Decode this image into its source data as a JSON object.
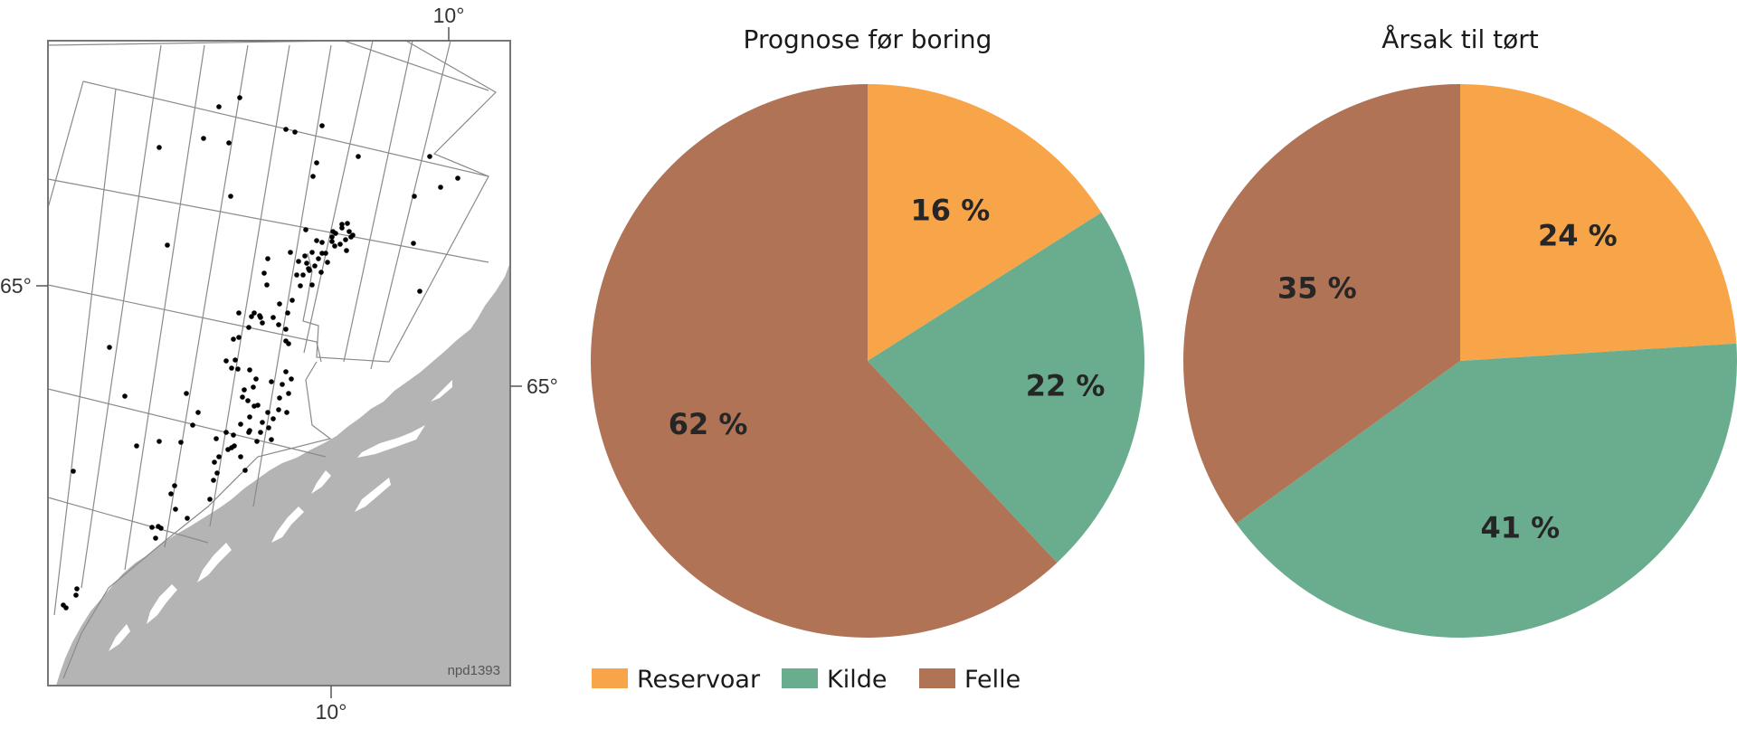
{
  "map": {
    "lon_label_top": "10°",
    "lon_label_bottom": "10°",
    "lat_label_left": "65°",
    "lat_label_right": "65°",
    "figure_id": "npd1393"
  },
  "colors": {
    "Reservoar": "#f8a448",
    "Kilde": "#6aad8e",
    "Felle": "#b07355",
    "land": "#b4b4b4",
    "grid": "#8a8a8a"
  },
  "chart_data": [
    {
      "type": "pie",
      "title": "Prognose før boring",
      "categories": [
        "Reservoar",
        "Kilde",
        "Felle"
      ],
      "values": [
        16,
        22,
        62
      ],
      "labels": [
        "16 %",
        "22 %",
        "62 %"
      ],
      "start": "12 o'clock",
      "direction": "clockwise"
    },
    {
      "type": "pie",
      "title": "Årsak til tørt",
      "categories": [
        "Reservoar",
        "Kilde",
        "Felle"
      ],
      "values": [
        24,
        41,
        35
      ],
      "labels": [
        "24 %",
        "41 %",
        "35 %"
      ],
      "start": "12 o'clock",
      "direction": "clockwise"
    }
  ],
  "legend": {
    "placement": "bottom",
    "items": [
      "Reservoar",
      "Kilde",
      "Felle"
    ]
  }
}
